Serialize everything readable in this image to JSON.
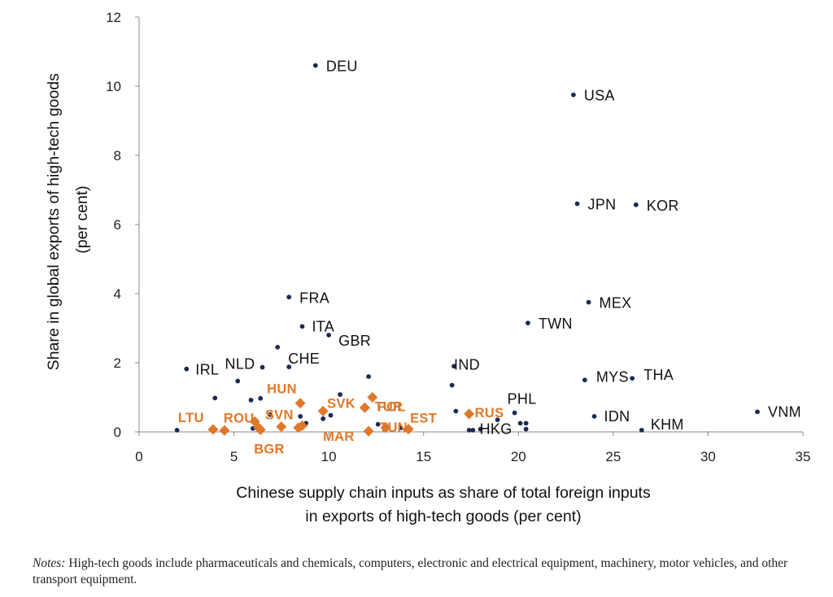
{
  "chart_data": {
    "type": "scatter",
    "title": "",
    "xlabel_lines": [
      "Chinese supply chain inputs as share of total foreign inputs",
      "in exports of high-tech goods (per cent)"
    ],
    "ylabel_lines": [
      "Share in global exports of high-tech goods",
      "(per cent)"
    ],
    "xlim": [
      0,
      35
    ],
    "ylim": [
      0,
      12
    ],
    "x_ticks": [
      "0",
      "5",
      "10",
      "15",
      "20",
      "25",
      "30",
      "35"
    ],
    "y_ticks": [
      "0",
      "2",
      "4",
      "6",
      "8",
      "10",
      "12"
    ],
    "grid": false,
    "series": [
      {
        "marker": "dot",
        "color": "#1B2A55",
        "points": [
          {
            "label": "DEU",
            "x": 9.3,
            "y": 10.6
          },
          {
            "label": "USA",
            "x": 22.9,
            "y": 9.75
          },
          {
            "label": "JPN",
            "x": 23.1,
            "y": 6.6
          },
          {
            "label": "KOR",
            "x": 26.2,
            "y": 6.57
          },
          {
            "label": "FRA",
            "x": 7.9,
            "y": 3.9
          },
          {
            "label": "MEX",
            "x": 23.7,
            "y": 3.75
          },
          {
            "label": "ITA",
            "x": 8.6,
            "y": 3.05
          },
          {
            "label": "TWN",
            "x": 20.5,
            "y": 3.15
          },
          {
            "label": "GBR",
            "x": 10.0,
            "y": 2.8
          },
          {
            "label": "CHE",
            "x": 7.3,
            "y": 2.45
          },
          {
            "label": "IRL",
            "x": 2.5,
            "y": 1.82
          },
          {
            "label": "NLD",
            "x": 6.5,
            "y": 1.87
          },
          {
            "label": "IND",
            "x": 16.6,
            "y": 1.9
          },
          {
            "label": "MYS",
            "x": 23.5,
            "y": 1.5
          },
          {
            "label": "THA",
            "x": 26.0,
            "y": 1.55
          },
          {
            "label": "PHL",
            "x": 19.8,
            "y": 0.55
          },
          {
            "label": "IDN",
            "x": 24.0,
            "y": 0.45
          },
          {
            "label": "HKG",
            "x": 20.4,
            "y": 0.08
          },
          {
            "label": "KHM",
            "x": 26.5,
            "y": 0.05
          },
          {
            "label": "VNM",
            "x": 32.6,
            "y": 0.58
          },
          {
            "label": "",
            "x": 2.0,
            "y": 0.05
          },
          {
            "label": "",
            "x": 4.0,
            "y": 0.98
          },
          {
            "label": "",
            "x": 5.2,
            "y": 1.47
          },
          {
            "label": "",
            "x": 5.9,
            "y": 0.92
          },
          {
            "label": "",
            "x": 6.4,
            "y": 0.97
          },
          {
            "label": "",
            "x": 6.0,
            "y": 0.1
          },
          {
            "label": "",
            "x": 6.9,
            "y": 0.5
          },
          {
            "label": "",
            "x": 7.9,
            "y": 1.88
          },
          {
            "label": "",
            "x": 8.5,
            "y": 0.45
          },
          {
            "label": "",
            "x": 8.8,
            "y": 0.25
          },
          {
            "label": "",
            "x": 9.7,
            "y": 0.38
          },
          {
            "label": "",
            "x": 10.1,
            "y": 0.48
          },
          {
            "label": "",
            "x": 10.6,
            "y": 1.08
          },
          {
            "label": "",
            "x": 12.1,
            "y": 1.6
          },
          {
            "label": "",
            "x": 12.6,
            "y": 0.22
          },
          {
            "label": "",
            "x": 13.8,
            "y": 0.12
          },
          {
            "label": "",
            "x": 16.5,
            "y": 1.35
          },
          {
            "label": "",
            "x": 16.7,
            "y": 0.6
          },
          {
            "label": "",
            "x": 17.4,
            "y": 0.05
          },
          {
            "label": "",
            "x": 17.6,
            "y": 0.05
          },
          {
            "label": "",
            "x": 18.0,
            "y": 0.08
          },
          {
            "label": "",
            "x": 18.9,
            "y": 0.35
          },
          {
            "label": "",
            "x": 20.1,
            "y": 0.25
          },
          {
            "label": "",
            "x": 20.4,
            "y": 0.25
          }
        ]
      },
      {
        "marker": "diamond",
        "color": "#E0782A",
        "points": [
          {
            "label": "LTU",
            "x": 3.9,
            "y": 0.07
          },
          {
            "label": "ROU",
            "x": 4.5,
            "y": 0.04
          },
          {
            "label": "SVN",
            "x": 7.5,
            "y": 0.15
          },
          {
            "label": "BGR",
            "x": 6.4,
            "y": 0.06
          },
          {
            "label": "HUN",
            "x": 8.5,
            "y": 0.83
          },
          {
            "label": "SVK",
            "x": 9.7,
            "y": 0.6
          },
          {
            "label": "POL",
            "x": 12.3,
            "y": 1.0
          },
          {
            "label": "TUR",
            "x": 11.9,
            "y": 0.7
          },
          {
            "label": "MAR",
            "x": 12.1,
            "y": 0.02
          },
          {
            "label": "TUN",
            "x": 13.0,
            "y": 0.12
          },
          {
            "label": "EST",
            "x": 14.2,
            "y": 0.08
          },
          {
            "label": "RUS",
            "x": 17.4,
            "y": 0.52
          },
          {
            "label": "",
            "x": 6.1,
            "y": 0.3
          },
          {
            "label": "",
            "x": 6.3,
            "y": 0.12
          },
          {
            "label": "",
            "x": 8.4,
            "y": 0.12
          },
          {
            "label": "",
            "x": 8.6,
            "y": 0.18
          }
        ]
      }
    ]
  },
  "notes": {
    "prefix": "Notes:",
    "text": " High-tech goods include pharmaceuticals and chemicals, computers, electronic and electrical equipment, machinery, motor vehicles, and other transport equipment."
  }
}
